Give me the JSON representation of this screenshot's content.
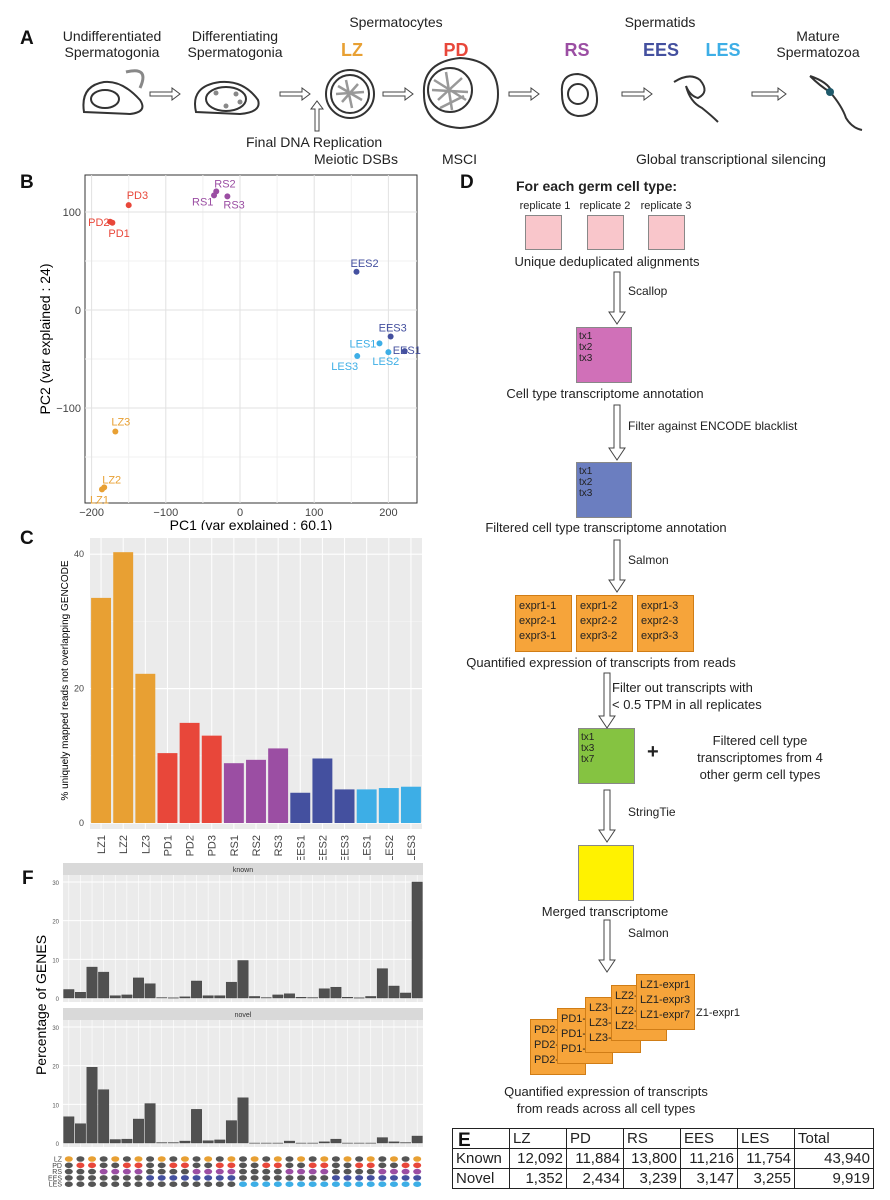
{
  "panel_labels": {
    "a": "A",
    "b": "B",
    "c": "C",
    "d": "D",
    "e": "E",
    "f": "F"
  },
  "panel_a": {
    "undiff": [
      "Undifferentiated",
      "Spermatogonia"
    ],
    "diff": [
      "Differentiating",
      "Spermatogonia"
    ],
    "spermatocytes": "Spermatocytes",
    "spermatids": "Spermatids",
    "mature": [
      "Mature",
      "Spermatozoa"
    ],
    "stages": [
      {
        "label": "LZ",
        "color": "#e8a033"
      },
      {
        "label": "PD",
        "color": "#e8473a"
      },
      {
        "label": "RS",
        "color": "#9b4ea3"
      },
      {
        "label": "EES",
        "color": "#44509f"
      },
      {
        "label": "LES",
        "color": "#3daee6"
      }
    ],
    "final_dna": "Final DNA Replication",
    "meiotic": "Meiotic DSBs",
    "msci": "MSCI",
    "silencing": "Global transcriptional silencing"
  },
  "chart_data": [
    {
      "panel": "B",
      "type": "scatter",
      "xlabel": "PC1 (var explained : 60.1)",
      "ylabel": "PC2 (var explained : 24)",
      "xticks": [
        -200,
        -100,
        0,
        100,
        200
      ],
      "yticks": [
        -100,
        0,
        100
      ],
      "grid": true,
      "points": [
        {
          "label": "LZ1",
          "x": -186,
          "y": -183,
          "color": "#e8a033"
        },
        {
          "label": "LZ2",
          "x": -183,
          "y": -181,
          "color": "#e8a033"
        },
        {
          "label": "LZ3",
          "x": -168,
          "y": -124,
          "color": "#e8a033"
        },
        {
          "label": "PD1",
          "x": -172,
          "y": 89,
          "color": "#e8473a"
        },
        {
          "label": "PD2",
          "x": -175,
          "y": 90,
          "color": "#e8473a"
        },
        {
          "label": "PD3",
          "x": -150,
          "y": 107,
          "color": "#e8473a"
        },
        {
          "label": "RS1",
          "x": -35,
          "y": 117,
          "color": "#9b4ea3"
        },
        {
          "label": "RS2",
          "x": -32,
          "y": 121,
          "color": "#9b4ea3"
        },
        {
          "label": "RS3",
          "x": -17,
          "y": 116,
          "color": "#9b4ea3"
        },
        {
          "label": "EES1",
          "x": 222,
          "y": -42,
          "color": "#44509f"
        },
        {
          "label": "EES2",
          "x": 157,
          "y": 39,
          "color": "#44509f"
        },
        {
          "label": "EES3",
          "x": 203,
          "y": -27,
          "color": "#44509f"
        },
        {
          "label": "LES1",
          "x": 188,
          "y": -34,
          "color": "#3daee6"
        },
        {
          "label": "LES2",
          "x": 200,
          "y": -43,
          "color": "#3daee6"
        },
        {
          "label": "LES3",
          "x": 158,
          "y": -47,
          "color": "#3daee6"
        }
      ]
    },
    {
      "panel": "C",
      "type": "bar",
      "ylabel": "% uniquely mapped reads not overlapping GENCODE",
      "yticks": [
        0,
        20,
        40
      ],
      "categories": [
        "LZ1",
        "LZ2",
        "LZ3",
        "PD1",
        "PD2",
        "PD3",
        "RS1",
        "RS2",
        "RS3",
        "EES1",
        "EES2",
        "EES3",
        "LES1",
        "LES2",
        "LES3"
      ],
      "values": [
        33.5,
        40.3,
        22.2,
        10.4,
        14.9,
        13.0,
        8.9,
        9.4,
        11.1,
        4.5,
        9.6,
        5.0,
        5.0,
        5.2,
        5.4
      ],
      "colors": [
        "#e8a033",
        "#e8a033",
        "#e8a033",
        "#e8473a",
        "#e8473a",
        "#e8473a",
        "#9b4ea3",
        "#9b4ea3",
        "#9b4ea3",
        "#44509f",
        "#44509f",
        "#44509f",
        "#3daee6",
        "#3daee6",
        "#3daee6"
      ]
    },
    {
      "panel": "F",
      "type": "bar",
      "ylabel": "Percentage of GENES",
      "yticks": [
        0,
        10,
        20,
        30
      ],
      "facets": [
        {
          "name": "known",
          "values": [
            2.2,
            1.5,
            8.0,
            6.7,
            0.6,
            0.8,
            5.2,
            3.7,
            0.1,
            0.05,
            0.3,
            4.4,
            0.6,
            0.6,
            4.1,
            9.7,
            0.4,
            0.1,
            0.8,
            1.1,
            0.2,
            0.1,
            2.4,
            2.8,
            0.2,
            0.05,
            0.4,
            7.6,
            3.1,
            1.3,
            30.0
          ]
        },
        {
          "name": "novel",
          "values": [
            6.8,
            5.0,
            19.6,
            13.8,
            0.9,
            1.0,
            6.2,
            10.2,
            0.1,
            0.1,
            0.5,
            8.7,
            0.6,
            0.8,
            5.8,
            11.7,
            0,
            0,
            0,
            0.5,
            0,
            0,
            0.3,
            1.0,
            0,
            0,
            0,
            1.4,
            0.3,
            0.1,
            1.8
          ]
        }
      ],
      "matrix_rows": [
        {
          "label": "LZ",
          "color": "#e8a033"
        },
        {
          "label": "PD",
          "color": "#e8473a"
        },
        {
          "label": "RS",
          "color": "#9b4ea3"
        },
        {
          "label": "EES",
          "color": "#44509f"
        },
        {
          "label": "LES",
          "color": "#3daee6"
        }
      ],
      "matrix_absent_color": "#555555"
    }
  ],
  "panel_d": {
    "heading": "For each germ cell type:",
    "replicates": [
      "replicate 1",
      "replicate 2",
      "replicate 3"
    ],
    "s1": "Unique deduplicated alignments",
    "step1": "Scallop",
    "box1": [
      "tx1",
      "tx2",
      "tx3"
    ],
    "s2": "Cell type transcriptome annotation",
    "step2": "Filter against ENCODE blacklist",
    "box2": [
      "tx1",
      "tx2",
      "tx3"
    ],
    "s3": "Filtered cell type transcriptome annotation",
    "step3": "Salmon",
    "expr": [
      [
        "expr1-1",
        "expr2-1",
        "expr3-1"
      ],
      [
        "expr1-2",
        "expr2-2",
        "expr3-2"
      ],
      [
        "expr1-3",
        "expr2-3",
        "expr3-3"
      ]
    ],
    "s4": "Quantified expression of transcripts from reads",
    "step4": [
      "Filter out transcripts with",
      "< 0.5 TPM in all replicates"
    ],
    "box3": [
      "tx1",
      "tx3",
      "tx7"
    ],
    "plus": "+",
    "others": [
      "Filtered cell type",
      "transcriptomes from 4",
      "other germ cell types"
    ],
    "step5": "StringTie",
    "s5": "Merged transcriptome",
    "step6": "Salmon",
    "stack": [
      [
        "PD2-",
        "PD2-",
        "PD2-"
      ],
      [
        "PD1-",
        "PD1-",
        "PD1-"
      ],
      [
        "LZ3-",
        "LZ3-",
        "LZ3-"
      ],
      [
        "LZ2-",
        "LZ2-",
        "LZ2-"
      ],
      [
        "LZ1-expr1",
        "LZ1-expr3",
        "LZ1-expr7"
      ]
    ],
    "stack_overflow": "Z1-expr1",
    "s6": [
      "Quantified expression of transcripts",
      "from reads across all cell types"
    ],
    "colors": {
      "pink": "#f9c6cb",
      "magenta": "#d070b8",
      "blue": "#6b7ec0",
      "orange": "#f6a43a",
      "green": "#85c341",
      "yellow": "#fff200"
    }
  },
  "panel_e": {
    "headers": [
      "",
      "LZ",
      "PD",
      "RS",
      "EES",
      "LES",
      "Total"
    ],
    "rows": [
      [
        "Known",
        "12,092",
        "11,884",
        "13,800",
        "11,216",
        "11,754",
        "43,940"
      ],
      [
        "Novel",
        "1,352",
        "2,434",
        "3,239",
        "3,147",
        "3,255",
        "9,919"
      ]
    ]
  }
}
